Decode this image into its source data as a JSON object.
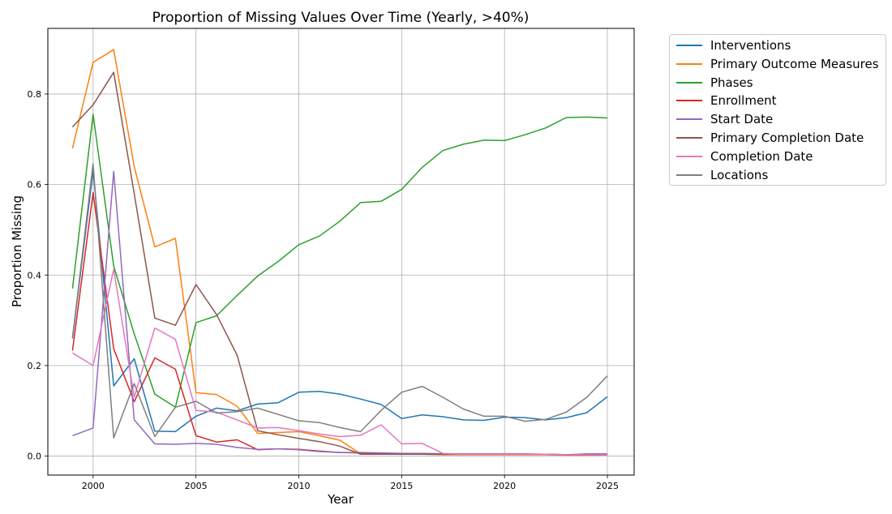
{
  "chart_data": {
    "type": "line",
    "title": "Proportion of Missing Values Over Time (Yearly, >40%)",
    "xlabel": "Year",
    "ylabel": "Proportion Missing",
    "xlim": [
      1997.8,
      2026.3
    ],
    "ylim": [
      -0.042,
      0.945
    ],
    "xticks": [
      2000,
      2005,
      2010,
      2015,
      2020,
      2025
    ],
    "yticks": [
      0.0,
      0.2,
      0.4,
      0.6,
      0.8
    ],
    "ytick_labels": [
      "0.0",
      "0.2",
      "0.4",
      "0.6",
      "0.8"
    ],
    "grid": true,
    "legend_position": "outside top-right",
    "x": [
      1999,
      2000,
      2001,
      2002,
      2003,
      2004,
      2005,
      2006,
      2007,
      2008,
      2009,
      2010,
      2011,
      2012,
      2013,
      2014,
      2015,
      2016,
      2017,
      2018,
      2019,
      2020,
      2021,
      2022,
      2023,
      2024,
      2025
    ],
    "series": [
      {
        "name": "Interventions",
        "color": "#1f77b4",
        "values": [
          0.26,
          0.63,
          0.155,
          0.215,
          0.055,
          0.054,
          0.088,
          0.106,
          0.1,
          0.115,
          0.118,
          0.141,
          0.143,
          0.137,
          0.126,
          0.114,
          0.083,
          0.091,
          0.087,
          0.08,
          0.079,
          0.086,
          0.085,
          0.08,
          0.085,
          0.096,
          0.131
        ]
      },
      {
        "name": "Primary Outcome Measures",
        "color": "#ff7f0e",
        "values": [
          0.68,
          0.87,
          0.898,
          0.64,
          0.462,
          0.481,
          0.14,
          0.136,
          0.11,
          0.05,
          0.052,
          0.054,
          0.045,
          0.035,
          0.005,
          0.004,
          0.004,
          0.004,
          0.003,
          0.003,
          0.003,
          0.003,
          0.003,
          0.003,
          0.002,
          0.002,
          0.003
        ]
      },
      {
        "name": "Phases",
        "color": "#2ca02c",
        "values": [
          0.37,
          0.755,
          0.42,
          0.27,
          0.137,
          0.108,
          0.295,
          0.31,
          0.355,
          0.398,
          0.43,
          0.467,
          0.486,
          0.519,
          0.56,
          0.563,
          0.589,
          0.638,
          0.675,
          0.689,
          0.698,
          0.697,
          0.71,
          0.725,
          0.748,
          0.749,
          0.747
        ]
      },
      {
        "name": "Enrollment",
        "color": "#d62728",
        "values": [
          0.233,
          0.582,
          0.237,
          0.12,
          0.217,
          0.192,
          0.045,
          0.031,
          0.036,
          0.014,
          0.016,
          0.015,
          0.011,
          0.008,
          0.007,
          0.006,
          0.005,
          0.005,
          0.004,
          0.004,
          0.004,
          0.004,
          0.004,
          0.004,
          0.003,
          0.003,
          0.003
        ]
      },
      {
        "name": "Start Date",
        "color": "#9467bd",
        "values": [
          0.045,
          0.062,
          0.629,
          0.08,
          0.027,
          0.026,
          0.028,
          0.026,
          0.019,
          0.015,
          0.016,
          0.014,
          0.01,
          0.008,
          0.008,
          0.007,
          0.006,
          0.006,
          0.005,
          0.005,
          0.005,
          0.005,
          0.005,
          0.004,
          0.003,
          0.005,
          0.005
        ]
      },
      {
        "name": "Primary Completion Date",
        "color": "#8c564b",
        "values": [
          0.727,
          0.776,
          0.848,
          0.58,
          0.305,
          0.289,
          0.379,
          0.313,
          0.223,
          0.056,
          0.047,
          0.039,
          0.032,
          0.022,
          0.004,
          0.004,
          0.004,
          0.004,
          0.004,
          0.004,
          0.004,
          0.004,
          0.004,
          0.004,
          0.003,
          0.003,
          0.003
        ]
      },
      {
        "name": "Completion Date",
        "color": "#e377c2",
        "values": [
          0.228,
          0.2,
          0.413,
          0.13,
          0.283,
          0.258,
          0.101,
          0.097,
          0.08,
          0.062,
          0.063,
          0.056,
          0.049,
          0.043,
          0.046,
          0.069,
          0.027,
          0.028,
          0.006,
          0.004,
          0.004,
          0.004,
          0.004,
          0.004,
          0.003,
          0.003,
          0.003
        ]
      },
      {
        "name": "Locations",
        "color": "#7f7f7f",
        "values": [
          0.261,
          0.646,
          0.04,
          0.16,
          0.043,
          0.108,
          0.121,
          0.095,
          0.098,
          0.106,
          0.092,
          0.078,
          0.074,
          0.063,
          0.054,
          0.101,
          0.141,
          0.154,
          0.13,
          0.104,
          0.088,
          0.088,
          0.077,
          0.081,
          0.097,
          0.13,
          0.177
        ]
      }
    ]
  }
}
